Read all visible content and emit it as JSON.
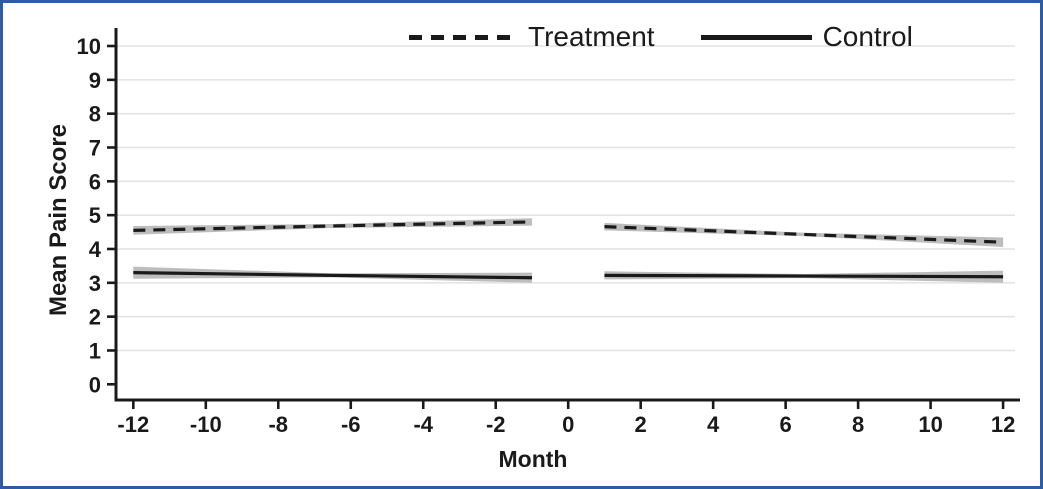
{
  "figure": {
    "border_color": "#2d5ca6",
    "background_color": "#ffffff"
  },
  "legend": {
    "position": "top-center",
    "items": [
      {
        "label": "Treatment",
        "line_style": "dashed"
      },
      {
        "label": "Control",
        "line_style": "solid"
      }
    ]
  },
  "chart_data": {
    "type": "line",
    "title": "",
    "xlabel": "Month",
    "ylabel": "Mean Pain Score",
    "xlim": [
      -12.5,
      12.5
    ],
    "ylim": [
      0,
      10
    ],
    "xticks": [
      -12,
      -10,
      -8,
      -6,
      -4,
      -2,
      0,
      2,
      4,
      6,
      8,
      10,
      12
    ],
    "yticks": [
      0,
      1,
      2,
      3,
      4,
      5,
      6,
      7,
      8,
      9,
      10
    ],
    "grid": "horizontal",
    "gap_note": "lines are interrupted between month -1 and month 1 (intervention at month 0)",
    "line_color": "#1a1a1a",
    "band_color": "#bdbdbd",
    "gridline_color": "#e4e4e4",
    "series": [
      {
        "name": "Treatment",
        "line_style": "dashed",
        "segments": [
          {
            "period": "pre-intervention",
            "x": [
              -12,
              -6.5,
              -1
            ],
            "y": [
              4.55,
              4.68,
              4.8
            ],
            "ci_lower": [
              4.42,
              4.62,
              4.69
            ],
            "ci_upper": [
              4.68,
              4.74,
              4.91
            ]
          },
          {
            "period": "post-intervention",
            "x": [
              1,
              6.5,
              12
            ],
            "y": [
              4.66,
              4.43,
              4.2
            ],
            "ci_lower": [
              4.55,
              4.38,
              4.06
            ],
            "ci_upper": [
              4.77,
              4.48,
              4.34
            ]
          }
        ]
      },
      {
        "name": "Control",
        "line_style": "solid",
        "segments": [
          {
            "period": "pre-intervention",
            "x": [
              -12,
              -6.5,
              -1
            ],
            "y": [
              3.3,
              3.22,
              3.15
            ],
            "ci_lower": [
              3.12,
              3.16,
              3.0
            ],
            "ci_upper": [
              3.48,
              3.28,
              3.3
            ]
          },
          {
            "period": "post-intervention",
            "x": [
              1,
              6.5,
              12
            ],
            "y": [
              3.22,
              3.2,
              3.18
            ],
            "ci_lower": [
              3.1,
              3.14,
              3.0
            ],
            "ci_upper": [
              3.34,
              3.26,
              3.36
            ]
          }
        ]
      }
    ]
  }
}
